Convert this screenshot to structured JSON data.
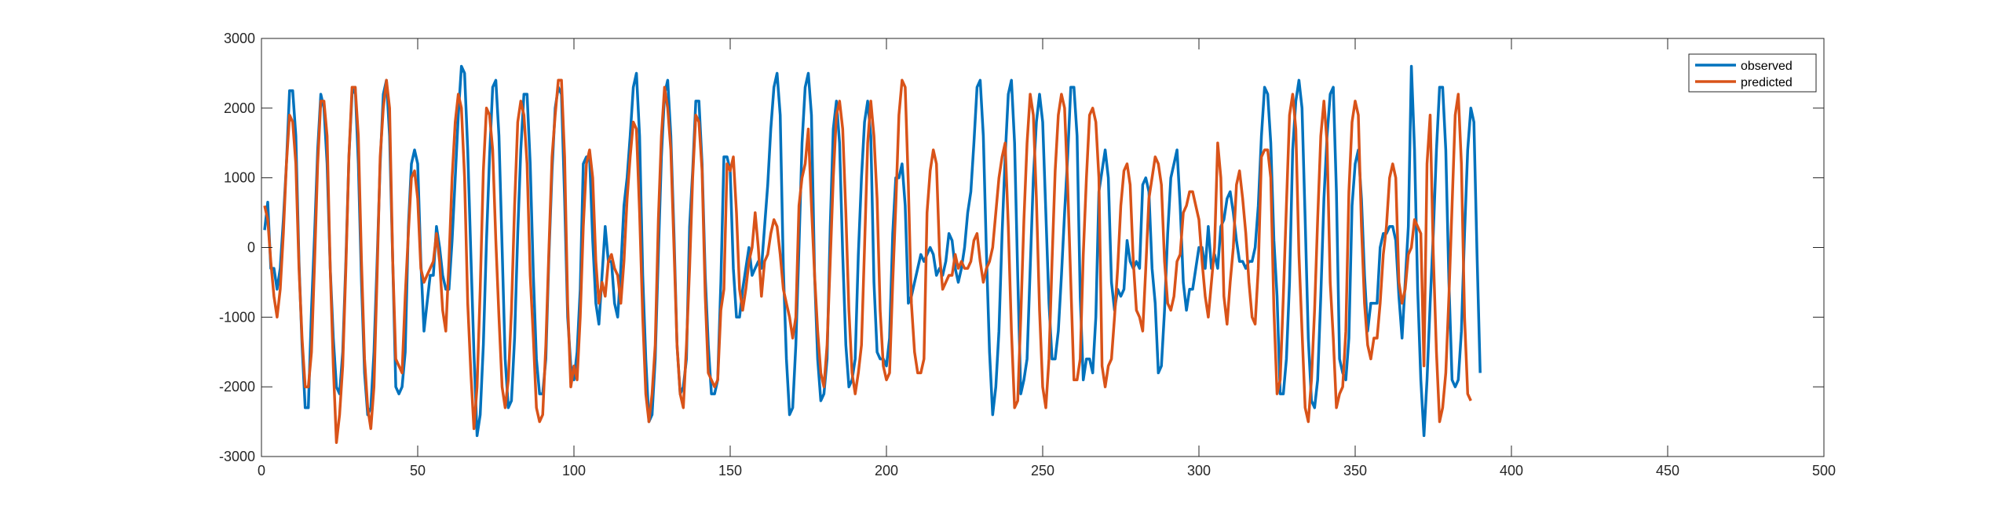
{
  "chart_data": {
    "type": "line",
    "title": "",
    "xlabel": "",
    "ylabel": "",
    "xlim": [
      0,
      500
    ],
    "ylim": [
      -3000,
      3000
    ],
    "xticks": [
      0,
      50,
      100,
      150,
      200,
      250,
      300,
      350,
      400,
      450,
      500
    ],
    "yticks": [
      -3000,
      -2000,
      -1000,
      0,
      1000,
      2000,
      3000
    ],
    "grid": false,
    "legend_position": "top-right",
    "x_start": 1,
    "x_step": 1,
    "series": [
      {
        "name": "observed",
        "color": "#0072BD",
        "values": [
          250,
          650,
          -300,
          -300,
          -600,
          -300,
          400,
          1200,
          2250,
          2250,
          1600,
          -200,
          -1400,
          -2300,
          -2300,
          -900,
          200,
          1400,
          2200,
          2000,
          1200,
          -300,
          -1300,
          -2000,
          -2100,
          -1500,
          -200,
          1300,
          2200,
          2300,
          1200,
          -500,
          -1800,
          -2400,
          -2300,
          -1500,
          -200,
          1200,
          2200,
          2400,
          1600,
          -200,
          -2000,
          -2100,
          -2000,
          -1500,
          300,
          1200,
          1400,
          1200,
          -200,
          -1200,
          -800,
          -400,
          -400,
          300,
          0,
          -400,
          -600,
          -600,
          100,
          1000,
          1900,
          2600,
          2500,
          1400,
          -100,
          -1500,
          -2700,
          -2400,
          -1400,
          100,
          1300,
          2300,
          2400,
          1600,
          0,
          -1600,
          -2300,
          -2200,
          -1300,
          200,
          1400,
          2200,
          2200,
          1200,
          -400,
          -1600,
          -2100,
          -2100,
          -1600,
          -100,
          1100,
          2000,
          2300,
          2200,
          700,
          -1000,
          -1700,
          -1900,
          -1500,
          -600,
          1200,
          1300,
          1300,
          100,
          -800,
          -1100,
          -400,
          300,
          -200,
          -200,
          -800,
          -1000,
          -300,
          600,
          1000,
          1600,
          2300,
          2500,
          1600,
          -400,
          -1600,
          -2500,
          -2400,
          -1600,
          -100,
          1300,
          2200,
          2400,
          1600,
          200,
          -1400,
          -2100,
          -2000,
          -1600,
          300,
          1100,
          2100,
          2100,
          1200,
          -400,
          -1400,
          -2100,
          -2100,
          -1900,
          -500,
          1300,
          1300,
          1100,
          -300,
          -1000,
          -1000,
          -600,
          -300,
          0,
          -400,
          -300,
          -200,
          -300,
          300,
          900,
          1700,
          2300,
          2500,
          1900,
          -300,
          -1600,
          -2400,
          -2300,
          -1400,
          0,
          1500,
          2300,
          2500,
          1900,
          -400,
          -1600,
          -2200,
          -2100,
          -1600,
          300,
          1700,
          2100,
          1500,
          -100,
          -1400,
          -2000,
          -1900,
          -1600,
          -100,
          1000,
          1800,
          2100,
          1600,
          -500,
          -1500,
          -1600,
          -1600,
          -1700,
          -1300,
          200,
          1000,
          1000,
          1200,
          600,
          -800,
          -700,
          -500,
          -300,
          -100,
          -200,
          -100,
          0,
          -100,
          -400,
          -300,
          -400,
          -200,
          200,
          100,
          -300,
          -500,
          -300,
          0,
          500,
          800,
          1500,
          2300,
          2400,
          1600,
          -100,
          -1500,
          -2400,
          -2000,
          -1200,
          200,
          1300,
          2200,
          2400,
          1500,
          -400,
          -2100,
          -1900,
          -1600,
          -300,
          1000,
          1800,
          2200,
          1800,
          500,
          -800,
          -1600,
          -1600,
          -1200,
          -400,
          500,
          1300,
          2300,
          2300,
          1600,
          -700,
          -1900,
          -1600,
          -1600,
          -1800,
          -1000,
          800,
          1100,
          1400,
          1000,
          -500,
          -900,
          -600,
          -700,
          -600,
          100,
          -200,
          -300,
          -200,
          -300,
          900,
          1000,
          800,
          -300,
          -800,
          -1800,
          -1700,
          -900,
          200,
          1000,
          1200,
          1400,
          600,
          -500,
          -900,
          -600,
          -600,
          -300,
          0,
          0,
          -300,
          300,
          -300,
          -100,
          -300,
          300,
          400,
          700,
          800,
          500,
          100,
          -200,
          -200,
          -300,
          -200,
          -200,
          0,
          600,
          1600,
          2300,
          2200,
          1500,
          100,
          -700,
          -2100,
          -2100,
          -1600,
          -500,
          1400,
          2100,
          2400,
          2000,
          400,
          -1300,
          -2200,
          -2300,
          -1900,
          -700,
          700,
          1600,
          2200,
          2300,
          800,
          -1600,
          -1800,
          -1900,
          -1300,
          600,
          1200,
          1400,
          700,
          -400,
          -1200,
          -800,
          -800,
          -800,
          0,
          200,
          200,
          300,
          300,
          100,
          -700,
          -1300,
          -500,
          300,
          2600,
          1400,
          -600,
          -1900,
          -2700,
          -1900,
          -800,
          200,
          1400,
          2300,
          2300,
          1400,
          -500,
          -1900,
          -2000,
          -1900,
          -1200,
          200,
          1400,
          2000,
          1800,
          -100,
          -1800
        ],
        "x_offset": 0
      },
      {
        "name": "predicted",
        "color": "#D95319",
        "values": [
          600,
          400,
          -200,
          -700,
          -1000,
          -600,
          200,
          1200,
          1900,
          1800,
          1200,
          -300,
          -1300,
          -2000,
          -2000,
          -1500,
          -200,
          1200,
          2100,
          2100,
          1600,
          -300,
          -1700,
          -2800,
          -2400,
          -1700,
          -300,
          1300,
          2300,
          2300,
          1600,
          -200,
          -1600,
          -2300,
          -2600,
          -2000,
          -400,
          1300,
          2000,
          2400,
          2000,
          -200,
          -1600,
          -1700,
          -1800,
          -700,
          200,
          1000,
          1100,
          700,
          -300,
          -500,
          -400,
          -300,
          -200,
          200,
          -200,
          -900,
          -1200,
          -200,
          1000,
          1800,
          2200,
          2000,
          1000,
          -800,
          -1800,
          -2600,
          -2000,
          -600,
          1100,
          2000,
          1900,
          1400,
          100,
          -1000,
          -2000,
          -2300,
          -1900,
          -900,
          600,
          1800,
          2100,
          1900,
          1200,
          -400,
          -1300,
          -2300,
          -2500,
          -2400,
          -1400,
          0,
          1300,
          1900,
          2400,
          2400,
          1300,
          -800,
          -2000,
          -1700,
          -1900,
          -1000,
          300,
          1200,
          1400,
          1000,
          -200,
          -800,
          -500,
          -700,
          -200,
          -100,
          -300,
          -400,
          -800,
          -200,
          700,
          1300,
          1800,
          1700,
          500,
          -1000,
          -2100,
          -2500,
          -2100,
          -1400,
          400,
          1600,
          2300,
          2000,
          1400,
          0,
          -1400,
          -2100,
          -2300,
          -1400,
          -300,
          1000,
          1900,
          1800,
          1100,
          -700,
          -1800,
          -1900,
          -2000,
          -1900,
          -900,
          -600,
          1200,
          1100,
          1300,
          500,
          -600,
          -900,
          -600,
          -200,
          0,
          500,
          0,
          -700,
          -200,
          -100,
          200,
          400,
          300,
          -100,
          -600,
          -800,
          -1000,
          -1300,
          -1000,
          600,
          1000,
          1200,
          1700,
          600,
          -400,
          -1200,
          -1800,
          -2000,
          -1400,
          -200,
          1000,
          1900,
          2100,
          1700,
          500,
          -900,
          -1800,
          -2100,
          -1800,
          -1400,
          0,
          1500,
          2100,
          1600,
          700,
          -900,
          -1700,
          -1900,
          -1800,
          -500,
          600,
          1900,
          2400,
          2300,
          900,
          -800,
          -1500,
          -1800,
          -1800,
          -1600,
          500,
          1100,
          1400,
          1200,
          -100,
          -600,
          -500,
          -400,
          -400,
          -100,
          -300,
          -200,
          -300,
          -300,
          -200,
          100,
          200,
          -200,
          -500,
          -300,
          -200,
          0,
          500,
          1000,
          1300,
          1500,
          300,
          -1200,
          -2300,
          -2200,
          -1000,
          400,
          1500,
          2200,
          1900,
          700,
          -900,
          -2000,
          -2300,
          -1600,
          -200,
          1100,
          1900,
          2200,
          2000,
          900,
          -500,
          -1900,
          -1900,
          -1600,
          -100,
          1000,
          1900,
          2000,
          1800,
          1000,
          -1700,
          -2000,
          -1700,
          -1600,
          -1000,
          -300,
          600,
          1100,
          1200,
          900,
          -200,
          -900,
          -1000,
          -1200,
          -300,
          700,
          1000,
          1300,
          1200,
          900,
          -200,
          -800,
          -900,
          -700,
          -200,
          -100,
          500,
          600,
          800,
          800,
          600,
          400,
          -200,
          -700,
          -1000,
          -500,
          0,
          1500,
          1000,
          -700,
          -1100,
          -500,
          0,
          900,
          1100,
          700,
          200,
          -500,
          -1000,
          -1100,
          -300,
          1300,
          1400,
          1400,
          1000,
          -900,
          -2100,
          -1900,
          -700,
          600,
          1900,
          2200,
          1700,
          -100,
          -1200,
          -2300,
          -2500,
          -1900,
          -900,
          400,
          1600,
          2100,
          1500,
          -500,
          -1300,
          -2300,
          -2100,
          -2000,
          -1200,
          800,
          1800,
          2100,
          1900,
          300,
          -800,
          -1400,
          -1600,
          -1300,
          -1300,
          -800,
          -100,
          300,
          1000,
          1200,
          1000,
          -500,
          -800,
          -600,
          -100,
          0,
          400,
          300,
          200,
          -1700,
          1200,
          1900,
          -100,
          -1500,
          -2500,
          -2300,
          -1800,
          -700,
          600,
          1900,
          2200,
          1200,
          -1000,
          -2100,
          -2200
        ],
        "x_offset": 0
      }
    ]
  }
}
